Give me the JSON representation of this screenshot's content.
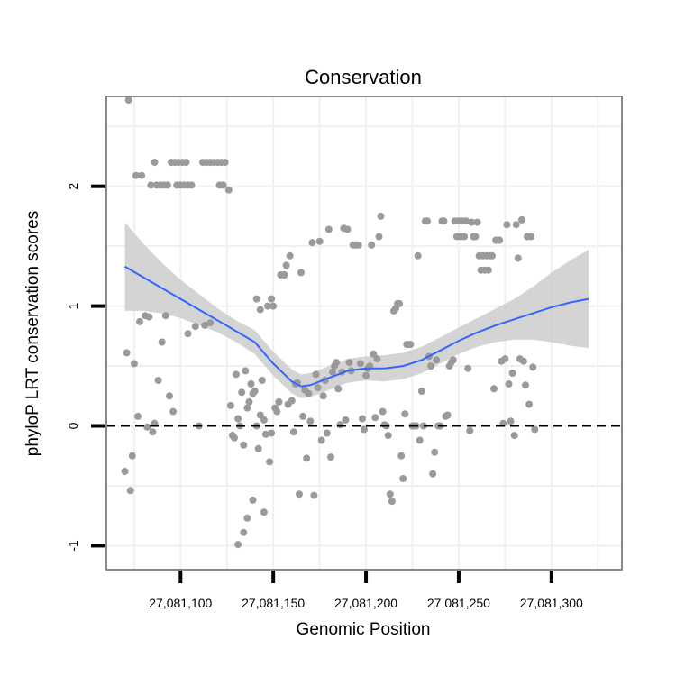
{
  "chart_data": {
    "type": "scatter",
    "title": "Conservation",
    "xlabel": "Genomic Position",
    "ylabel": "phyloP LRT conservation scores",
    "xlim": [
      27081060,
      27081338
    ],
    "ylim": [
      -1.2,
      2.75
    ],
    "x_ticks": [
      27081100,
      27081150,
      27081200,
      27081250,
      27081300
    ],
    "x_tick_labels": [
      "27,081,100",
      "27,081,150",
      "27,081,200",
      "27,081,250",
      "27,081,300"
    ],
    "y_ticks": [
      -1,
      0,
      1,
      2
    ],
    "y_tick_labels": [
      "-1",
      "0",
      "1",
      "2"
    ],
    "grid": true,
    "reference_line": {
      "y": 0,
      "style": "dashed"
    },
    "colors": {
      "points": "#9a9a9a",
      "smooth": "#3366ff",
      "ribbon": "#cccccc",
      "border": "#888888"
    },
    "points": [
      [
        27081072,
        2.72
      ],
      [
        27081070,
        -0.38
      ],
      [
        27081073,
        -0.54
      ],
      [
        27081071,
        0.61
      ],
      [
        27081075,
        0.52
      ],
      [
        27081074,
        -0.25
      ],
      [
        27081076,
        2.09
      ],
      [
        27081079,
        2.09
      ],
      [
        27081077,
        0.08
      ],
      [
        27081078,
        0.87
      ],
      [
        27081081,
        0.92
      ],
      [
        27081082,
        -0.01
      ],
      [
        27081083,
        0.91
      ],
      [
        27081085,
        -0.05
      ],
      [
        27081086,
        0.02
      ],
      [
        27081084,
        2.01
      ],
      [
        27081087,
        2.01
      ],
      [
        27081089,
        2.01
      ],
      [
        27081091,
        2.01
      ],
      [
        27081093,
        2.01
      ],
      [
        27081086,
        2.2
      ],
      [
        27081088,
        0.38
      ],
      [
        27081090,
        0.7
      ],
      [
        27081092,
        0.92
      ],
      [
        27081094,
        0.25
      ],
      [
        27081095,
        2.2
      ],
      [
        27081097,
        2.2
      ],
      [
        27081099,
        2.2
      ],
      [
        27081101,
        2.2
      ],
      [
        27081103,
        2.2
      ],
      [
        27081096,
        0.12
      ],
      [
        27081098,
        2.01
      ],
      [
        27081100,
        2.01
      ],
      [
        27081102,
        2.01
      ],
      [
        27081104,
        2.01
      ],
      [
        27081106,
        2.01
      ],
      [
        27081104,
        0.77
      ],
      [
        27081108,
        0.83
      ],
      [
        27081110,
        0.0
      ],
      [
        27081112,
        2.2
      ],
      [
        27081114,
        2.2
      ],
      [
        27081116,
        2.2
      ],
      [
        27081118,
        2.2
      ],
      [
        27081120,
        2.2
      ],
      [
        27081122,
        2.2
      ],
      [
        27081124,
        2.2
      ],
      [
        27081113,
        0.84
      ],
      [
        27081116,
        0.86
      ],
      [
        27081121,
        2.01
      ],
      [
        27081123,
        2.01
      ],
      [
        27081126,
        1.97
      ],
      [
        27081127,
        0.17
      ],
      [
        27081128,
        -0.08
      ],
      [
        27081129,
        -0.1
      ],
      [
        27081130,
        0.43
      ],
      [
        27081131,
        0.06
      ],
      [
        27081132,
        -0.0
      ],
      [
        27081133,
        0.28
      ],
      [
        27081134,
        -0.16
      ],
      [
        27081135,
        0.46
      ],
      [
        27081136,
        0.15
      ],
      [
        27081137,
        0.2
      ],
      [
        27081138,
        0.35
      ],
      [
        27081139,
        0.27
      ],
      [
        27081140,
        0.29
      ],
      [
        27081141,
        0.0
      ],
      [
        27081142,
        -0.19
      ],
      [
        27081143,
        0.09
      ],
      [
        27081144,
        0.38
      ],
      [
        27081145,
        0.05
      ],
      [
        27081146,
        -0.07
      ],
      [
        27081131,
        -0.99
      ],
      [
        27081134,
        -0.89
      ],
      [
        27081136,
        -0.77
      ],
      [
        27081139,
        -0.62
      ],
      [
        27081141,
        1.06
      ],
      [
        27081143,
        0.97
      ],
      [
        27081145,
        -0.72
      ],
      [
        27081147,
        1.0
      ],
      [
        27081149,
        1.06
      ],
      [
        27081150,
        1.0
      ],
      [
        27081148,
        -0.3
      ],
      [
        27081149,
        -0.06
      ],
      [
        27081151,
        0.15
      ],
      [
        27081152,
        0.12
      ],
      [
        27081153,
        0.2
      ],
      [
        27081154,
        1.26
      ],
      [
        27081156,
        1.26
      ],
      [
        27081157,
        1.34
      ],
      [
        27081158,
        0.18
      ],
      [
        27081159,
        1.42
      ],
      [
        27081160,
        0.21
      ],
      [
        27081161,
        -0.05
      ],
      [
        27081162,
        0.35
      ],
      [
        27081163,
        0.36
      ],
      [
        27081164,
        -0.57
      ],
      [
        27081165,
        1.28
      ],
      [
        27081166,
        0.08
      ],
      [
        27081167,
        0.3
      ],
      [
        27081168,
        -0.27
      ],
      [
        27081169,
        0.27
      ],
      [
        27081170,
        0.04
      ],
      [
        27081171,
        1.53
      ],
      [
        27081172,
        -0.58
      ],
      [
        27081173,
        0.43
      ],
      [
        27081174,
        0.32
      ],
      [
        27081175,
        1.54
      ],
      [
        27081176,
        -0.12
      ],
      [
        27081177,
        0.25
      ],
      [
        27081178,
        0.38
      ],
      [
        27081179,
        -0.06
      ],
      [
        27081180,
        1.64
      ],
      [
        27081181,
        -0.26
      ],
      [
        27081182,
        0.45
      ],
      [
        27081183,
        0.5
      ],
      [
        27081184,
        0.53
      ],
      [
        27081185,
        0.31
      ],
      [
        27081186,
        0.01
      ],
      [
        27081187,
        0.45
      ],
      [
        27081188,
        1.65
      ],
      [
        27081189,
        0.05
      ],
      [
        27081190,
        1.64
      ],
      [
        27081191,
        0.53
      ],
      [
        27081192,
        0.46
      ],
      [
        27081193,
        1.51
      ],
      [
        27081194,
        1.51
      ],
      [
        27081195,
        1.51
      ],
      [
        27081196,
        1.51
      ],
      [
        27081197,
        0.52
      ],
      [
        27081198,
        0.06
      ],
      [
        27081199,
        -0.03
      ],
      [
        27081200,
        0.42
      ],
      [
        27081201,
        0.48
      ],
      [
        27081202,
        0.5
      ],
      [
        27081203,
        1.51
      ],
      [
        27081204,
        0.6
      ],
      [
        27081205,
        0.07
      ],
      [
        27081206,
        0.56
      ],
      [
        27081207,
        1.58
      ],
      [
        27081208,
        1.75
      ],
      [
        27081209,
        0.12
      ],
      [
        27081210,
        0.01
      ],
      [
        27081211,
        0.0
      ],
      [
        27081212,
        -0.08
      ],
      [
        27081213,
        -0.57
      ],
      [
        27081214,
        -0.63
      ],
      [
        27081215,
        0.96
      ],
      [
        27081216,
        0.98
      ],
      [
        27081217,
        1.02
      ],
      [
        27081218,
        1.02
      ],
      [
        27081219,
        -0.25
      ],
      [
        27081220,
        -0.44
      ],
      [
        27081221,
        0.1
      ],
      [
        27081222,
        0.68
      ],
      [
        27081223,
        0.68
      ],
      [
        27081224,
        0.68
      ],
      [
        27081225,
        0.0
      ],
      [
        27081226,
        0.0
      ],
      [
        27081227,
        0.0
      ],
      [
        27081228,
        1.42
      ],
      [
        27081229,
        -0.12
      ],
      [
        27081230,
        0.29
      ],
      [
        27081231,
        0.0
      ],
      [
        27081232,
        1.71
      ],
      [
        27081233,
        1.71
      ],
      [
        27081234,
        0.58
      ],
      [
        27081235,
        0.5
      ],
      [
        27081236,
        -0.4
      ],
      [
        27081237,
        -0.22
      ],
      [
        27081238,
        0.55
      ],
      [
        27081239,
        0.0
      ],
      [
        27081240,
        0.0
      ],
      [
        27081241,
        1.71
      ],
      [
        27081242,
        1.71
      ],
      [
        27081243,
        0.08
      ],
      [
        27081244,
        0.09
      ],
      [
        27081245,
        0.5
      ],
      [
        27081246,
        0.53
      ],
      [
        27081247,
        0.55
      ],
      [
        27081248,
        1.71
      ],
      [
        27081249,
        1.58
      ],
      [
        27081250,
        1.71
      ],
      [
        27081251,
        1.58
      ],
      [
        27081252,
        1.71
      ],
      [
        27081253,
        1.58
      ],
      [
        27081254,
        1.71
      ],
      [
        27081255,
        0.48
      ],
      [
        27081256,
        -0.04
      ],
      [
        27081257,
        1.7
      ],
      [
        27081258,
        1.58
      ],
      [
        27081259,
        1.58
      ],
      [
        27081260,
        1.7
      ],
      [
        27081261,
        1.42
      ],
      [
        27081262,
        1.3
      ],
      [
        27081263,
        1.42
      ],
      [
        27081264,
        1.3
      ],
      [
        27081265,
        1.42
      ],
      [
        27081266,
        1.3
      ],
      [
        27081267,
        1.42
      ],
      [
        27081268,
        1.42
      ],
      [
        27081269,
        0.31
      ],
      [
        27081270,
        1.55
      ],
      [
        27081271,
        1.55
      ],
      [
        27081272,
        1.55
      ],
      [
        27081273,
        0.54
      ],
      [
        27081274,
        0.02
      ],
      [
        27081275,
        0.56
      ],
      [
        27081276,
        1.68
      ],
      [
        27081277,
        0.35
      ],
      [
        27081278,
        0.04
      ],
      [
        27081279,
        0.44
      ],
      [
        27081280,
        -0.08
      ],
      [
        27081281,
        1.68
      ],
      [
        27081282,
        1.4
      ],
      [
        27081283,
        0.56
      ],
      [
        27081284,
        1.72
      ],
      [
        27081285,
        0.54
      ],
      [
        27081286,
        0.34
      ],
      [
        27081287,
        1.58
      ],
      [
        27081288,
        0.18
      ],
      [
        27081289,
        1.58
      ],
      [
        27081290,
        0.49
      ],
      [
        27081291,
        -0.03
      ]
    ],
    "smooth": {
      "x": [
        27081070,
        27081080,
        27081090,
        27081100,
        27081110,
        27081120,
        27081130,
        27081140,
        27081150,
        27081160,
        27081165,
        27081170,
        27081175,
        27081180,
        27081185,
        27081190,
        27081195,
        27081200,
        27081210,
        27081220,
        27081230,
        27081240,
        27081250,
        27081260,
        27081270,
        27081280,
        27081290,
        27081300,
        27081310,
        27081320
      ],
      "y": [
        1.33,
        1.24,
        1.15,
        1.06,
        0.97,
        0.88,
        0.79,
        0.7,
        0.52,
        0.37,
        0.33,
        0.34,
        0.37,
        0.4,
        0.43,
        0.46,
        0.47,
        0.48,
        0.48,
        0.5,
        0.55,
        0.63,
        0.71,
        0.78,
        0.84,
        0.89,
        0.94,
        0.99,
        1.03,
        1.06
      ],
      "lower": [
        0.96,
        0.96,
        0.94,
        0.9,
        0.84,
        0.78,
        0.7,
        0.6,
        0.42,
        0.27,
        0.23,
        0.24,
        0.27,
        0.3,
        0.33,
        0.36,
        0.37,
        0.38,
        0.37,
        0.39,
        0.44,
        0.52,
        0.6,
        0.66,
        0.7,
        0.72,
        0.72,
        0.7,
        0.67,
        0.65
      ],
      "upper": [
        1.7,
        1.52,
        1.36,
        1.22,
        1.1,
        0.98,
        0.88,
        0.8,
        0.62,
        0.47,
        0.43,
        0.44,
        0.47,
        0.5,
        0.53,
        0.56,
        0.57,
        0.58,
        0.59,
        0.61,
        0.66,
        0.74,
        0.82,
        0.9,
        0.98,
        1.06,
        1.16,
        1.28,
        1.38,
        1.47
      ]
    }
  }
}
